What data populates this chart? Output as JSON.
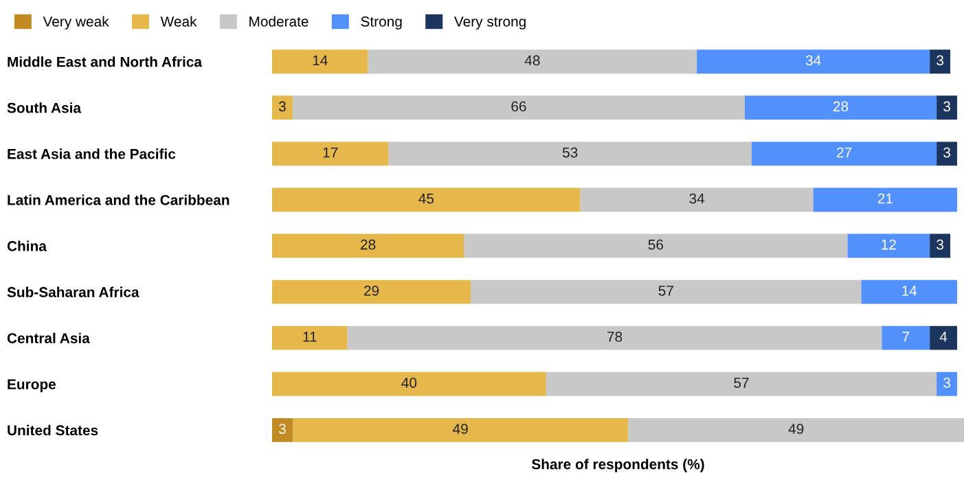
{
  "chart_data": {
    "type": "bar",
    "orientation": "horizontal",
    "stacked": true,
    "data_labels": true,
    "tick_labels": "y",
    "legend": "top left",
    "grid": false,
    "xlabel": "Share of respondents (%)",
    "categories": [
      "Middle East and North Africa",
      "South Asia",
      "East Asia and the Pacific",
      "Latin America and the Caribbean",
      "China",
      "Sub-Saharan Africa",
      "Central Asia",
      "Europe",
      "United States"
    ],
    "series": [
      {
        "name": "Very weak",
        "color": "#c28a23",
        "values": [
          null,
          null,
          null,
          null,
          null,
          null,
          null,
          null,
          3
        ]
      },
      {
        "name": "Weak",
        "color": "#e6b84b",
        "values": [
          14,
          3,
          17,
          45,
          28,
          29,
          11,
          40,
          49
        ]
      },
      {
        "name": "Moderate",
        "color": "#c8c8c8",
        "values": [
          48,
          66,
          53,
          34,
          56,
          57,
          78,
          57,
          49
        ]
      },
      {
        "name": "Strong",
        "color": "#5291fb",
        "values": [
          34,
          28,
          27,
          21,
          12,
          14,
          7,
          3,
          null
        ]
      },
      {
        "name": "Very strong",
        "color": "#1b355e",
        "values": [
          3,
          3,
          3,
          null,
          3,
          null,
          4,
          null,
          null
        ]
      }
    ]
  }
}
